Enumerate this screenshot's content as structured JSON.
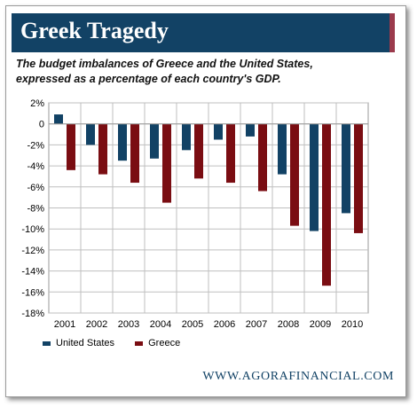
{
  "header": {
    "title": "Greek Tragedy",
    "subtitle_line1": "The budget imbalances of Greece and the United States,",
    "subtitle_line2": "expressed as a percentage of each country's GDP."
  },
  "footer": {
    "url": "WWW.AGORAFINANCIAL.COM"
  },
  "colors": {
    "banner": "#124265",
    "banner_accent": "#9b3a4c",
    "us": "#124265",
    "greece": "#7a0d12"
  },
  "chart_data": {
    "type": "bar",
    "title": "",
    "xlabel": "",
    "ylabel": "",
    "categories": [
      "2001",
      "2002",
      "2003",
      "2004",
      "2005",
      "2006",
      "2007",
      "2008",
      "2009",
      "2010"
    ],
    "series": [
      {
        "name": "United States",
        "color": "#124265",
        "values": [
          0.9,
          -2.0,
          -3.5,
          -3.3,
          -2.5,
          -1.5,
          -1.2,
          -4.8,
          -10.2,
          -8.5
        ]
      },
      {
        "name": "Greece",
        "color": "#7a0d12",
        "values": [
          -4.4,
          -4.8,
          -5.6,
          -7.5,
          -5.2,
          -5.6,
          -6.4,
          -9.7,
          -15.4,
          -10.4
        ]
      }
    ],
    "ylim": [
      -18,
      2
    ],
    "yticks": [
      2,
      0,
      -2,
      -4,
      -6,
      -8,
      -10,
      -12,
      -14,
      -16,
      -18
    ],
    "ytick_labels": [
      "2%",
      "0",
      "-2%",
      "-4%",
      "-6%",
      "-8%",
      "-10%",
      "-12%",
      "-14%",
      "-16%",
      "-18%"
    ],
    "grid": true,
    "legend_position": "bottom-left"
  }
}
